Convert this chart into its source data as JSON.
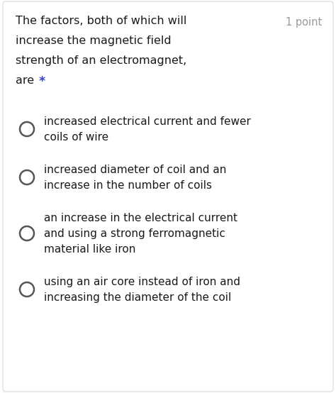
{
  "background_color": "#ffffff",
  "border_color": "#e0e0e0",
  "question_lines": [
    "The factors, both of which will",
    "increase the magnetic field",
    "strength of an electromagnet,",
    "are "
  ],
  "points_text": "1 point",
  "options": [
    [
      "increased electrical current and fewer",
      "coils of wire"
    ],
    [
      "increased diameter of coil and an",
      "increase in the number of coils"
    ],
    [
      "an increase in the electrical current",
      "and using a strong ferromagnetic",
      "material like iron"
    ],
    [
      "using an air core instead of iron and",
      "increasing the diameter of the coil"
    ]
  ],
  "question_fontsize": 11.5,
  "option_fontsize": 11.0,
  "points_fontsize": 10.5,
  "text_color": "#1a1a1a",
  "gray_color": "#999999",
  "circle_edge_color": "#555555",
  "star_color": "#3344cc",
  "figwidth": 4.74,
  "figheight": 5.54,
  "dpi": 100
}
